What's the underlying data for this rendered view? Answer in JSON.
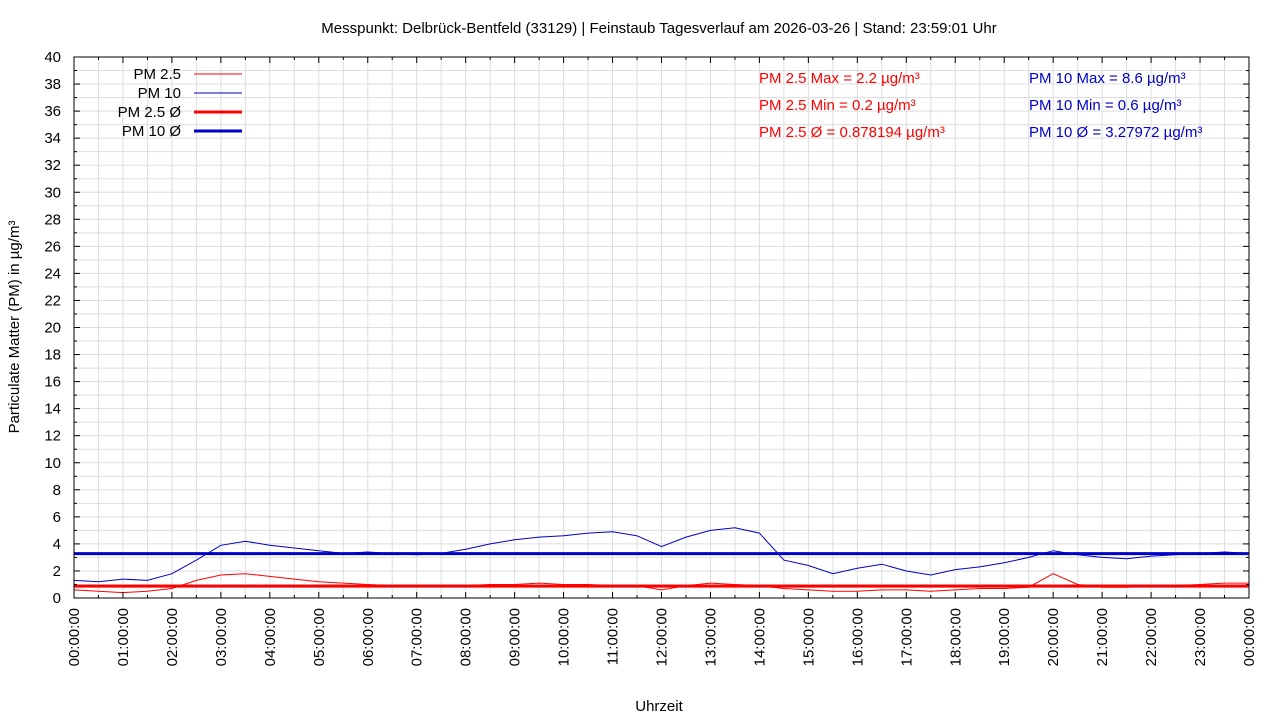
{
  "chart_data": {
    "type": "line",
    "title": "Messpunkt: Delbrück-Bentfeld (33129) | Feinstaub Tagesverlauf am 2026-03-26 | Stand: 23:59:01 Uhr",
    "xlabel": "Uhrzeit",
    "ylabel": "Particulate Matter (PM) in µg/m³",
    "xlim": [
      0,
      24
    ],
    "ylim": [
      0,
      40
    ],
    "grid": true,
    "legend_position": "top-left",
    "x_tick_labels": [
      "00:00:00",
      "01:00:00",
      "02:00:00",
      "03:00:00",
      "04:00:00",
      "05:00:00",
      "06:00:00",
      "07:00:00",
      "08:00:00",
      "09:00:00",
      "10:00:00",
      "11:00:00",
      "12:00:00",
      "13:00:00",
      "14:00:00",
      "15:00:00",
      "16:00:00",
      "17:00:00",
      "18:00:00",
      "19:00:00",
      "20:00:00",
      "21:00:00",
      "22:00:00",
      "23:00:00",
      "00:00:00"
    ],
    "y_ticks": [
      0,
      2,
      4,
      6,
      8,
      10,
      12,
      14,
      16,
      18,
      20,
      22,
      24,
      26,
      28,
      30,
      32,
      34,
      36,
      38,
      40
    ],
    "legend": [
      {
        "label": "PM 2.5",
        "color": "#ff0000",
        "style": "thin"
      },
      {
        "label": "PM 10",
        "color": "#0000c8",
        "style": "thin"
      },
      {
        "label": "PM 2.5 Ø",
        "color": "#ff0000",
        "style": "thick"
      },
      {
        "label": "PM 10 Ø",
        "color": "#0000c8",
        "style": "thick"
      }
    ],
    "stats": {
      "pm25": [
        "PM 2.5 Max = 2.2 µg/m³",
        "PM 2.5 Min = 0.2 µg/m³",
        "PM 2.5 Ø = 0.878194 µg/m³"
      ],
      "pm10": [
        "PM 10 Max = 8.6 µg/m³",
        "PM 10 Min = 0.6 µg/m³",
        "PM 10 Ø = 3.27972 µg/m³"
      ]
    },
    "colors": {
      "pm25": "#ff0000",
      "pm10": "#0000c8",
      "grid": "#dddddd"
    },
    "series": [
      {
        "name": "PM 10",
        "x": [
          0,
          0.5,
          1,
          1.5,
          2,
          2.5,
          3,
          3.5,
          4,
          4.5,
          5,
          5.5,
          6,
          6.5,
          7,
          7.5,
          8,
          8.5,
          9,
          9.5,
          10,
          10.5,
          11,
          11.5,
          12,
          12.5,
          13,
          13.5,
          14,
          14.5,
          15,
          15.5,
          16,
          16.5,
          17,
          17.5,
          18,
          18.5,
          19,
          19.5,
          20,
          20.5,
          21,
          21.5,
          22,
          22.5,
          23,
          23.5,
          24
        ],
        "values": [
          1.3,
          1.2,
          1.4,
          1.3,
          1.8,
          2.8,
          3.9,
          4.2,
          3.9,
          3.7,
          3.5,
          3.3,
          3.4,
          3.3,
          3.2,
          3.3,
          3.6,
          4.0,
          4.3,
          4.5,
          4.6,
          4.8,
          4.9,
          4.6,
          3.8,
          4.5,
          5.0,
          5.2,
          4.8,
          2.8,
          2.4,
          1.8,
          2.2,
          2.5,
          2.0,
          1.7,
          2.1,
          2.3,
          2.6,
          3.0,
          3.5,
          3.2,
          3.0,
          2.9,
          3.1,
          3.2,
          3.3,
          3.4,
          3.3
        ]
      },
      {
        "name": "PM 2.5",
        "x": [
          0,
          0.5,
          1,
          1.5,
          2,
          2.5,
          3,
          3.5,
          4,
          4.5,
          5,
          5.5,
          6,
          6.5,
          7,
          7.5,
          8,
          8.5,
          9,
          9.5,
          10,
          10.5,
          11,
          11.5,
          12,
          12.5,
          13,
          13.5,
          14,
          14.5,
          15,
          15.5,
          16,
          16.5,
          17,
          17.5,
          18,
          18.5,
          19,
          19.5,
          20,
          20.5,
          21,
          21.5,
          22,
          22.5,
          23,
          23.5,
          24
        ],
        "values": [
          0.6,
          0.5,
          0.4,
          0.5,
          0.7,
          1.3,
          1.7,
          1.8,
          1.6,
          1.4,
          1.2,
          1.1,
          1.0,
          0.9,
          0.9,
          0.9,
          0.9,
          1.0,
          1.0,
          1.1,
          1.0,
          1.0,
          0.9,
          0.9,
          0.6,
          0.9,
          1.1,
          1.0,
          0.9,
          0.7,
          0.6,
          0.5,
          0.5,
          0.6,
          0.6,
          0.5,
          0.6,
          0.7,
          0.7,
          0.8,
          1.8,
          1.0,
          0.8,
          0.8,
          0.9,
          0.9,
          1.0,
          1.1,
          1.1
        ]
      },
      {
        "name": "PM 2.5 Ø",
        "constant": 0.878194
      },
      {
        "name": "PM 10 Ø",
        "constant": 3.27972
      }
    ]
  }
}
